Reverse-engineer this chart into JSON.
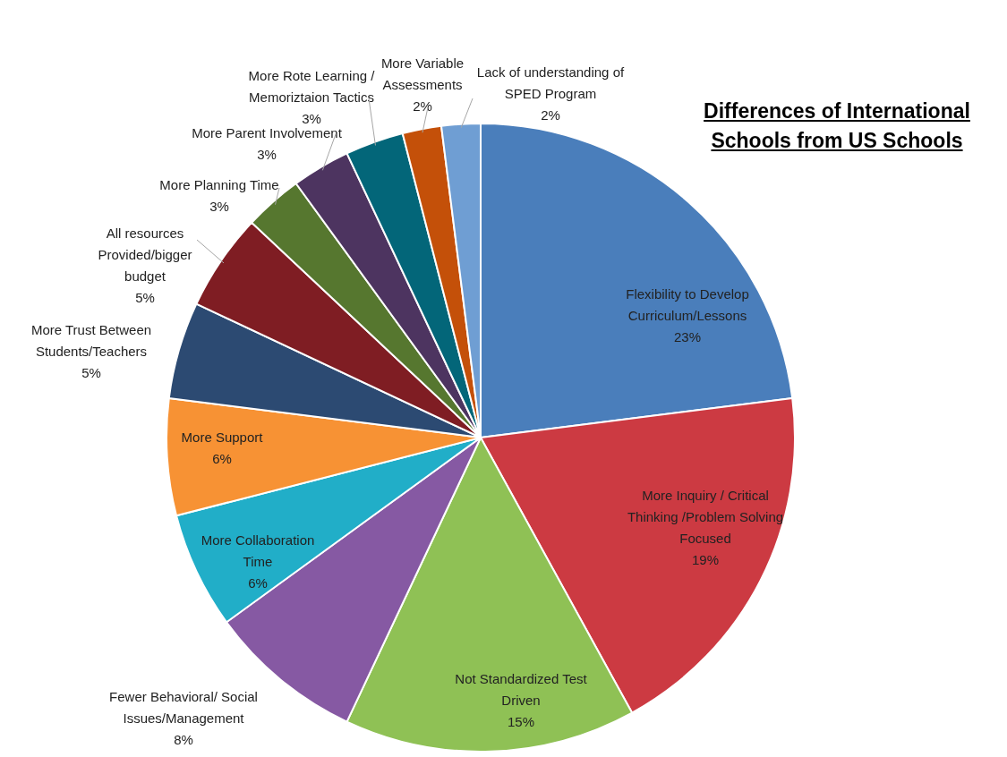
{
  "chart_data": {
    "type": "pie",
    "title": "Differences of International Schools from US Schools",
    "categories": [
      "Flexibility to Develop Curriculum/Lessons",
      "More Inquiry / Critical Thinking /Problem Solving Focused",
      "Not Standardized Test Driven",
      "Fewer Behavioral/ Social Issues/Management",
      "More Collaboration Time",
      "More Support",
      "More Trust Between Students/Teachers",
      "All resources Provided/bigger budget",
      "More Planning Time",
      "More Parent Involvement",
      "More Rote Learning / Memoriztaion Tactics",
      "More Variable Assessments",
      "Lack of understanding of SPED Program"
    ],
    "values": [
      23,
      19,
      15,
      8,
      6,
      6,
      5,
      5,
      3,
      3,
      3,
      2,
      2
    ],
    "colors": [
      "#4a7ebb",
      "#cc3a42",
      "#8fc155",
      "#8659a3",
      "#21aec8",
      "#f79234",
      "#2c4a72",
      "#7f1d23",
      "#56772f",
      "#4d3460",
      "#036679",
      "#c45009",
      "#6f9ed3"
    ],
    "value_labels": [
      "23%",
      "19%",
      "15%",
      "8%",
      "6%",
      "6%",
      "5%",
      "5%",
      "3%",
      "3%",
      "3%",
      "2%",
      "2%"
    ],
    "legend": false
  }
}
